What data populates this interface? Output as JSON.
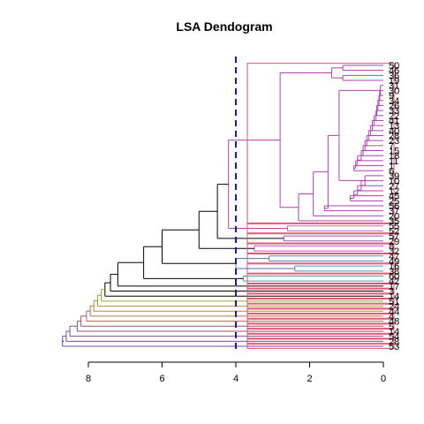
{
  "chart_data": {
    "type": "dendrogram",
    "title": "LSA Dendogram",
    "xlabel": "",
    "ylabel": "",
    "orientation": "horizontal",
    "x_axis": {
      "ticks": [
        8,
        6,
        4,
        2,
        0
      ],
      "range": [
        8.5,
        -0.7
      ],
      "reversed": true
    },
    "cut_height": 4,
    "leaves": [
      "50",
      "46",
      "36",
      "19",
      "31",
      "30",
      "9",
      "34",
      "26",
      "33",
      "22",
      "41",
      "13",
      "40",
      "28",
      "23",
      "7",
      "15",
      "18",
      "11",
      "1",
      "6",
      "39",
      "10",
      "27",
      "12",
      "45",
      "25",
      "56",
      "37",
      "20",
      "35",
      "55",
      "52",
      "57",
      "29",
      "8",
      "32",
      "47",
      "49",
      "16",
      "38",
      "60",
      "42",
      "17",
      "3",
      "14",
      "51",
      "24",
      "44",
      "4",
      "48",
      "5",
      "14",
      "54",
      "28",
      "53"
    ],
    "colors": {
      "clusters": "#e0506a",
      "cut_line": "#1a1aa6",
      "branch_main": "#b040b0",
      "branch_root": "#000000"
    }
  }
}
